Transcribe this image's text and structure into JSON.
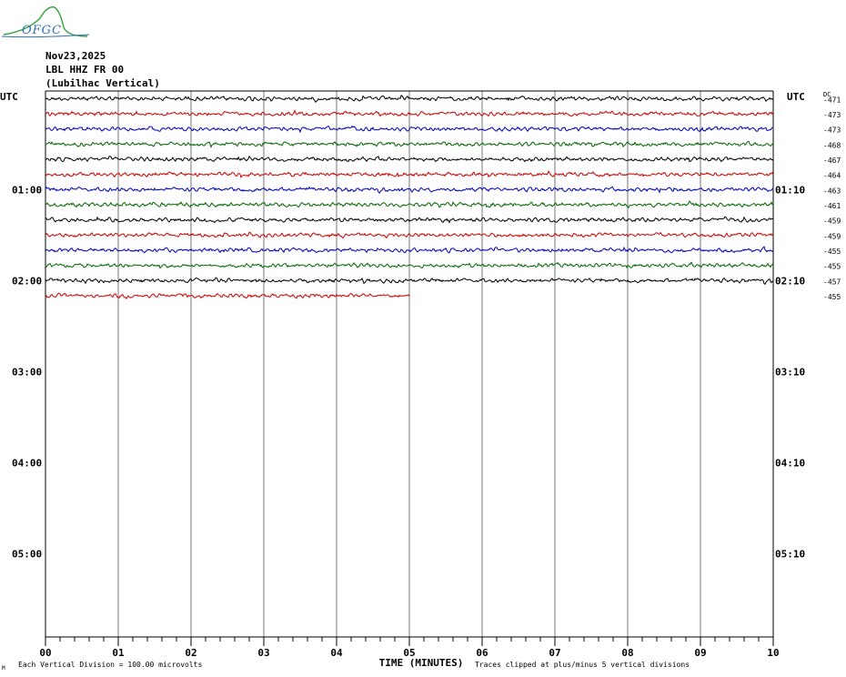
{
  "logo": {
    "text": "OFGC"
  },
  "header": {
    "date": "Nov23,2025",
    "station": "LBL HHZ FR 00",
    "location": "(Lubilhac Vertical)"
  },
  "axis": {
    "left_label": "UTC",
    "right_label": "UTC",
    "dc_label": "DC",
    "left_hour_labels": [
      "01:00",
      "02:00",
      "03:00",
      "04:00",
      "05:00"
    ],
    "right_hour_labels": [
      "01:10",
      "02:10",
      "03:10",
      "04:10",
      "05:10"
    ],
    "x_labels": [
      "00",
      "01",
      "02",
      "03",
      "04",
      "05",
      "06",
      "07",
      "08",
      "09",
      "10"
    ],
    "x_title": "TIME (MINUTES)"
  },
  "footer": {
    "mark": "M",
    "scale_note": "Each Vertical Division =  100.00 microvolts",
    "clip_note": "Traces clipped at plus/minus 5 vertical divisions"
  },
  "colors": {
    "trace_cycle": [
      "#000000",
      "#cc0000",
      "#0000bb",
      "#006600"
    ],
    "grid": "#777777",
    "logo": "#2a6fb0",
    "logo_curve": "#3aa040"
  },
  "chart_data": {
    "type": "line",
    "x_range_minutes": [
      0,
      10
    ],
    "rows_total": 36,
    "minutes_per_row": 10,
    "grid": true,
    "traces": [
      {
        "dc": "-471",
        "end_minute": 10
      },
      {
        "dc": "-473",
        "end_minute": 10
      },
      {
        "dc": "-473",
        "end_minute": 10
      },
      {
        "dc": "-468",
        "end_minute": 10
      },
      {
        "dc": "-467",
        "end_minute": 10
      },
      {
        "dc": "-464",
        "end_minute": 10
      },
      {
        "dc": "-463",
        "end_minute": 10
      },
      {
        "dc": "-461",
        "end_minute": 10
      },
      {
        "dc": "-459",
        "end_minute": 10
      },
      {
        "dc": "-459",
        "end_minute": 10
      },
      {
        "dc": "-455",
        "end_minute": 10
      },
      {
        "dc": "-455",
        "end_minute": 10
      },
      {
        "dc": "-457",
        "end_minute": 10
      },
      {
        "dc": "-455",
        "end_minute": 5
      }
    ]
  }
}
